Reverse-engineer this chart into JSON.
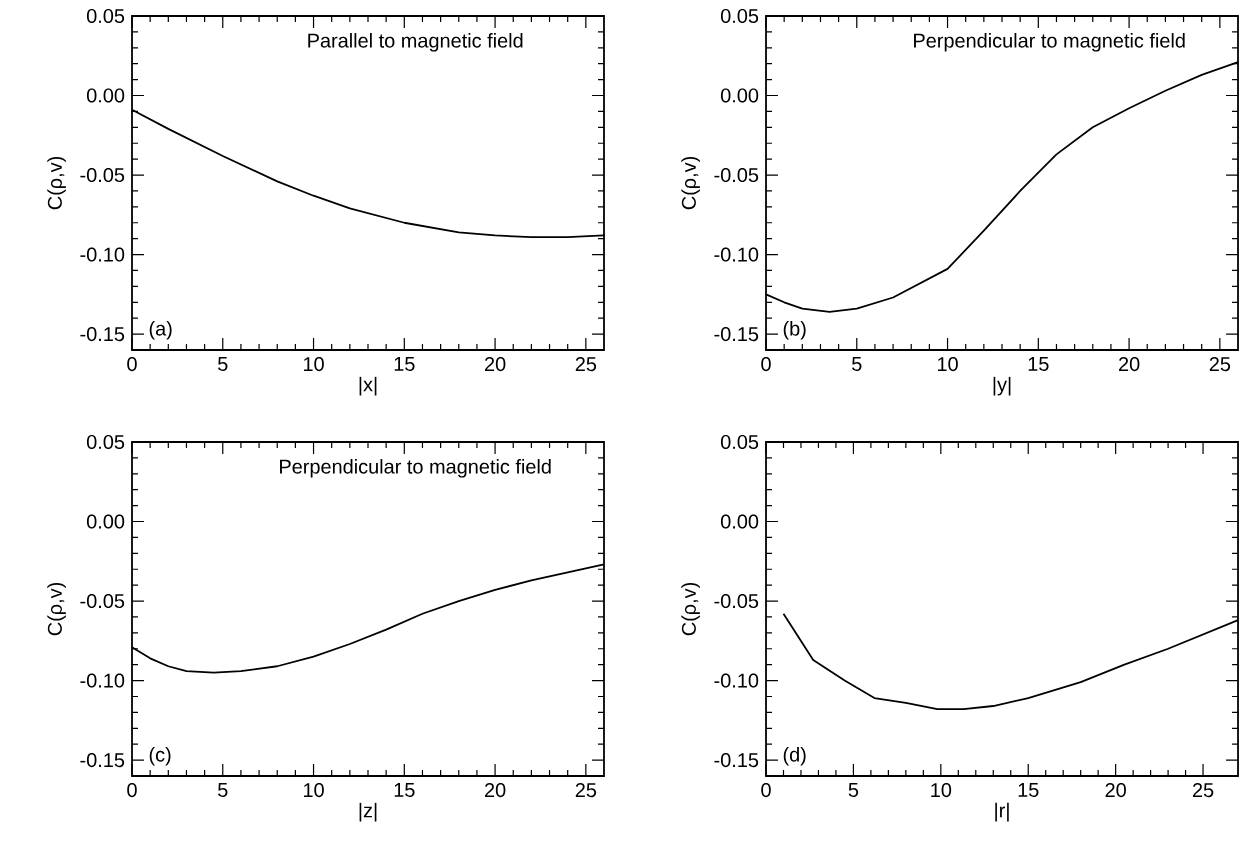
{
  "chart_data": [
    {
      "type": "line",
      "title": "Parallel to magnetic field",
      "xlabel": "|x|",
      "ylabel": "C(ρ,v)",
      "annotations": [
        "(a)"
      ],
      "xlim": [
        0,
        26
      ],
      "ylim": [
        -0.16,
        0.05
      ],
      "xticks": [
        0,
        5,
        10,
        15,
        20,
        25
      ],
      "yticks": [
        {
          "value": 0.05,
          "label": "0.05"
        },
        {
          "value": 0,
          "label": "0.00"
        },
        {
          "value": -0.05,
          "label": "-0.05"
        },
        {
          "value": -0.1,
          "label": "-0.10"
        },
        {
          "value": -0.15,
          "label": "-0.15"
        }
      ],
      "series": [
        {
          "color": "#000000",
          "x": [
            0,
            2,
            5,
            8,
            10,
            12,
            15,
            18,
            20,
            22,
            24,
            26
          ],
          "values": [
            -0.009,
            -0.021,
            -0.038,
            -0.054,
            -0.063,
            -0.071,
            -0.08,
            -0.086,
            -0.088,
            -0.089,
            -0.089,
            -0.088
          ]
        }
      ]
    },
    {
      "type": "line",
      "title": "Perpendicular to magnetic field",
      "xlabel": "|y|",
      "ylabel": "C(ρ,v)",
      "annotations": [
        "(b)"
      ],
      "xlim": [
        0,
        26
      ],
      "ylim": [
        -0.16,
        0.05
      ],
      "xticks": [
        0,
        5,
        10,
        15,
        20,
        25
      ],
      "yticks": [
        {
          "value": 0.05,
          "label": "0.05"
        },
        {
          "value": 0,
          "label": "0.00"
        },
        {
          "value": -0.05,
          "label": "-0.05"
        },
        {
          "value": -0.1,
          "label": "-0.10"
        },
        {
          "value": -0.15,
          "label": "-0.15"
        }
      ],
      "series": [
        {
          "color": "#000000",
          "x": [
            0,
            1,
            2,
            3.5,
            5,
            7,
            10,
            12,
            14,
            16,
            18,
            20,
            22,
            24,
            26
          ],
          "values": [
            -0.125,
            -0.13,
            -0.134,
            -0.136,
            -0.134,
            -0.127,
            -0.109,
            -0.085,
            -0.06,
            -0.037,
            -0.02,
            -0.008,
            0.003,
            0.013,
            0.021
          ]
        }
      ]
    },
    {
      "type": "line",
      "title": "Perpendicular to magnetic field",
      "xlabel": "|z|",
      "ylabel": "C(ρ,v)",
      "annotations": [
        "(c)"
      ],
      "xlim": [
        0,
        26
      ],
      "ylim": [
        -0.16,
        0.05
      ],
      "xticks": [
        0,
        5,
        10,
        15,
        20,
        25
      ],
      "yticks": [
        {
          "value": 0.05,
          "label": "0.05"
        },
        {
          "value": 0,
          "label": "0.00"
        },
        {
          "value": -0.05,
          "label": "-0.05"
        },
        {
          "value": -0.1,
          "label": "-0.10"
        },
        {
          "value": -0.15,
          "label": "-0.15"
        }
      ],
      "series": [
        {
          "color": "#000000",
          "x": [
            0,
            1,
            2,
            3,
            4.5,
            6,
            8,
            10,
            12,
            14,
            16,
            18,
            20,
            22,
            24,
            26
          ],
          "values": [
            -0.079,
            -0.086,
            -0.091,
            -0.094,
            -0.095,
            -0.094,
            -0.091,
            -0.085,
            -0.077,
            -0.068,
            -0.058,
            -0.05,
            -0.043,
            -0.037,
            -0.032,
            -0.027
          ]
        }
      ]
    },
    {
      "type": "line",
      "xlabel": "|r|",
      "ylabel": "C(ρ,v)",
      "annotations": [
        "(d)"
      ],
      "xlim": [
        0,
        27
      ],
      "ylim": [
        -0.16,
        0.05
      ],
      "xticks": [
        0,
        5,
        10,
        15,
        20,
        25
      ],
      "yticks": [
        {
          "value": 0.05,
          "label": "0.05"
        },
        {
          "value": 0,
          "label": "0.00"
        },
        {
          "value": -0.05,
          "label": "-0.05"
        },
        {
          "value": -0.1,
          "label": "-0.10"
        },
        {
          "value": -0.15,
          "label": "-0.15"
        }
      ],
      "series": [
        {
          "color": "#000000",
          "x": [
            1,
            2.7,
            4.5,
            6.2,
            8,
            9.8,
            11.3,
            13,
            15,
            18,
            20.5,
            23,
            27
          ],
          "values": [
            -0.058,
            -0.087,
            -0.1,
            -0.111,
            -0.114,
            -0.118,
            -0.118,
            -0.116,
            -0.111,
            -0.101,
            -0.09,
            -0.08,
            -0.062
          ]
        }
      ]
    }
  ]
}
